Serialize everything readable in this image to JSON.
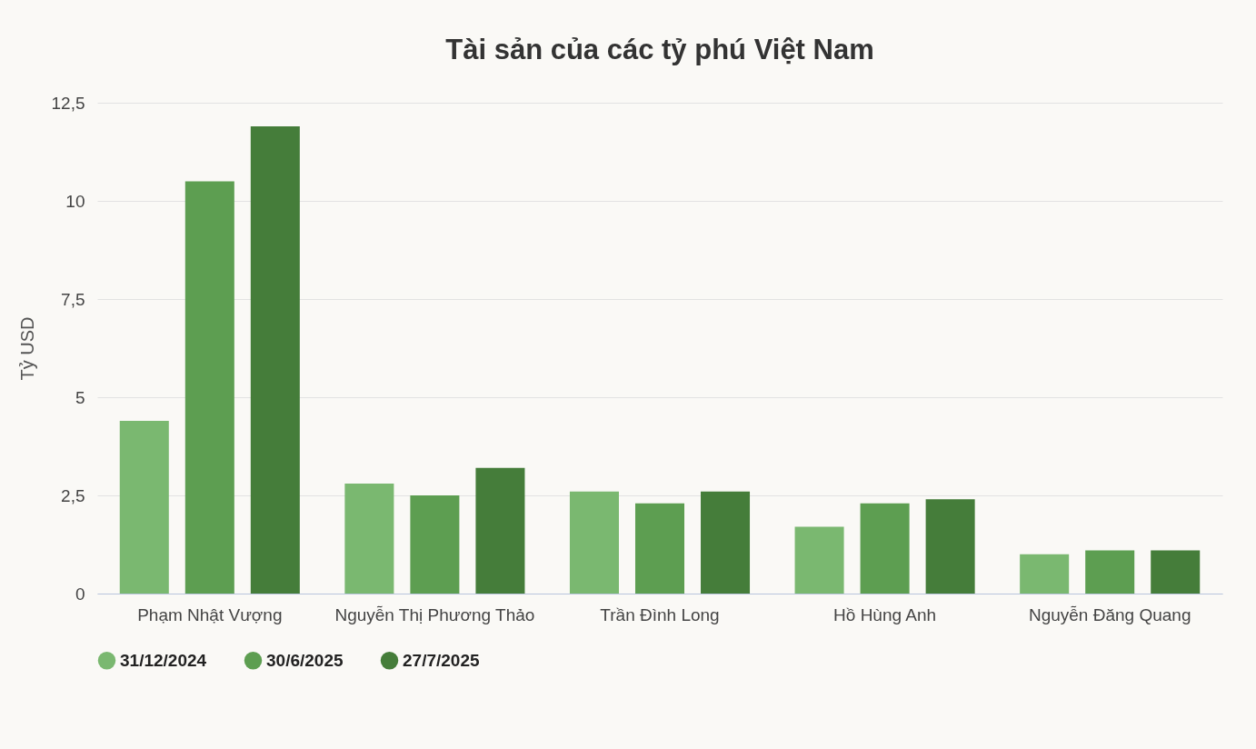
{
  "chart_data": {
    "type": "bar",
    "title": "Tài sản của các tỷ phú Việt Nam",
    "ylabel": "Tỷ USD",
    "categories": [
      "Phạm Nhật Vượng",
      "Nguyễn Thị Phương Thảo",
      "Trần Đình Long",
      "Hồ Hùng Anh",
      "Nguyễn Đăng Quang"
    ],
    "series": [
      {
        "name": "31/12/2024",
        "color": "#7ab870",
        "values": [
          4.4,
          2.8,
          2.6,
          1.7,
          1.0
        ]
      },
      {
        "name": "30/6/2025",
        "color": "#5d9e51",
        "values": [
          10.5,
          2.5,
          2.3,
          2.3,
          1.1
        ]
      },
      {
        "name": "27/7/2025",
        "color": "#457d3a",
        "values": [
          11.9,
          3.2,
          2.6,
          2.4,
          1.1
        ]
      }
    ],
    "ylim": [
      0,
      12.5
    ],
    "yticks": [
      0,
      {
        "value": 2.5,
        "label": "2,5"
      },
      5,
      {
        "value": 7.5,
        "label": "7,5"
      },
      10,
      {
        "value": 12.5,
        "label": "12,5"
      }
    ],
    "grid": "y",
    "legend": "bottom"
  }
}
